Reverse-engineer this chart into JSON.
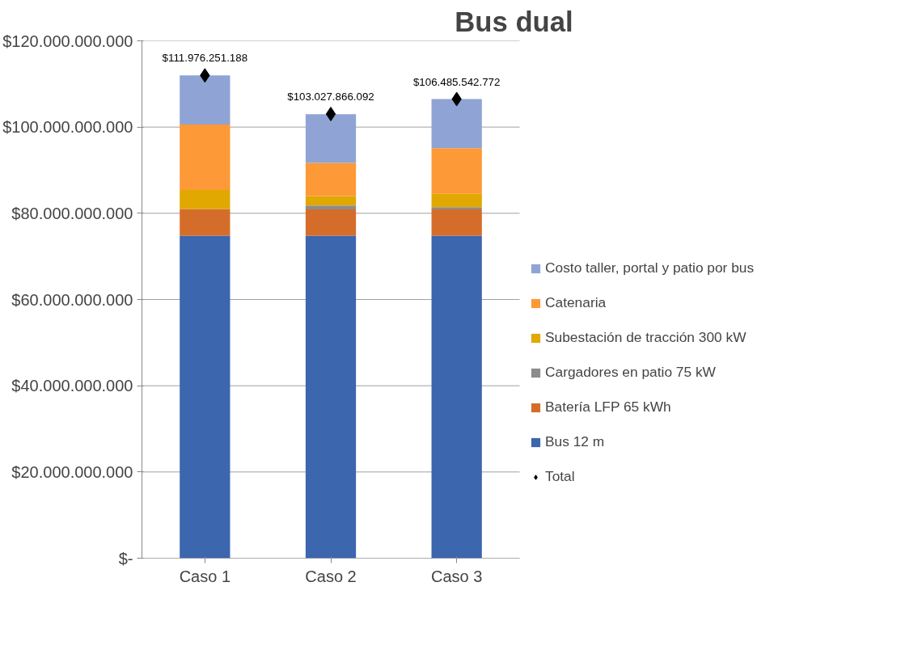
{
  "chart_data": {
    "type": "bar",
    "title": "Bus dual",
    "stacked": true,
    "categories": [
      "Caso 1",
      "Caso 2",
      "Caso 3"
    ],
    "ylim": [
      0,
      120000000000
    ],
    "yticks": [
      {
        "value": 0,
        "label": "$-"
      },
      {
        "value": 20000000000,
        "label": "$20.000.000.000"
      },
      {
        "value": 40000000000,
        "label": "$40.000.000.000"
      },
      {
        "value": 60000000000,
        "label": "$60.000.000.000"
      },
      {
        "value": 80000000000,
        "label": "$80.000.000.000"
      },
      {
        "value": 100000000000,
        "label": "$100.000.000.000"
      },
      {
        "value": 120000000000,
        "label": "$120.000.000.000"
      }
    ],
    "grid": "y",
    "legend": "right",
    "series": [
      {
        "name": "Bus 12 m",
        "color": "#3c66ae",
        "values": [
          74800000000,
          74800000000,
          74800000000
        ]
      },
      {
        "name": "Batería LFP 65 kWh",
        "color": "#d56d2a",
        "values": [
          6200000000,
          6100000000,
          6100000000
        ]
      },
      {
        "name": "Cargadores en patio 75 kW",
        "color": "#8c8c8c",
        "values": [
          0,
          900000000,
          500000000
        ]
      },
      {
        "name": "Subestación de tracción 300 kW",
        "color": "#e0a800",
        "values": [
          4400000000,
          2200000000,
          3200000000
        ]
      },
      {
        "name": "Catenaria",
        "color": "#fd9937",
        "values": [
          15200000000,
          7700000000,
          10500000000
        ]
      },
      {
        "name": "Costo taller, portal y patio por bus",
        "color": "#8fa4d4",
        "values": [
          11400000000,
          11300000000,
          11400000000
        ]
      },
      {
        "name": "Total",
        "type": "scatter",
        "marker": "diamond",
        "color": "#000000",
        "values": [
          111976251188,
          103027866092,
          106485542772
        ],
        "value_labels": [
          "$111.976.251.188",
          "$103.027.866.092",
          "$106.485.542.772"
        ]
      }
    ]
  }
}
